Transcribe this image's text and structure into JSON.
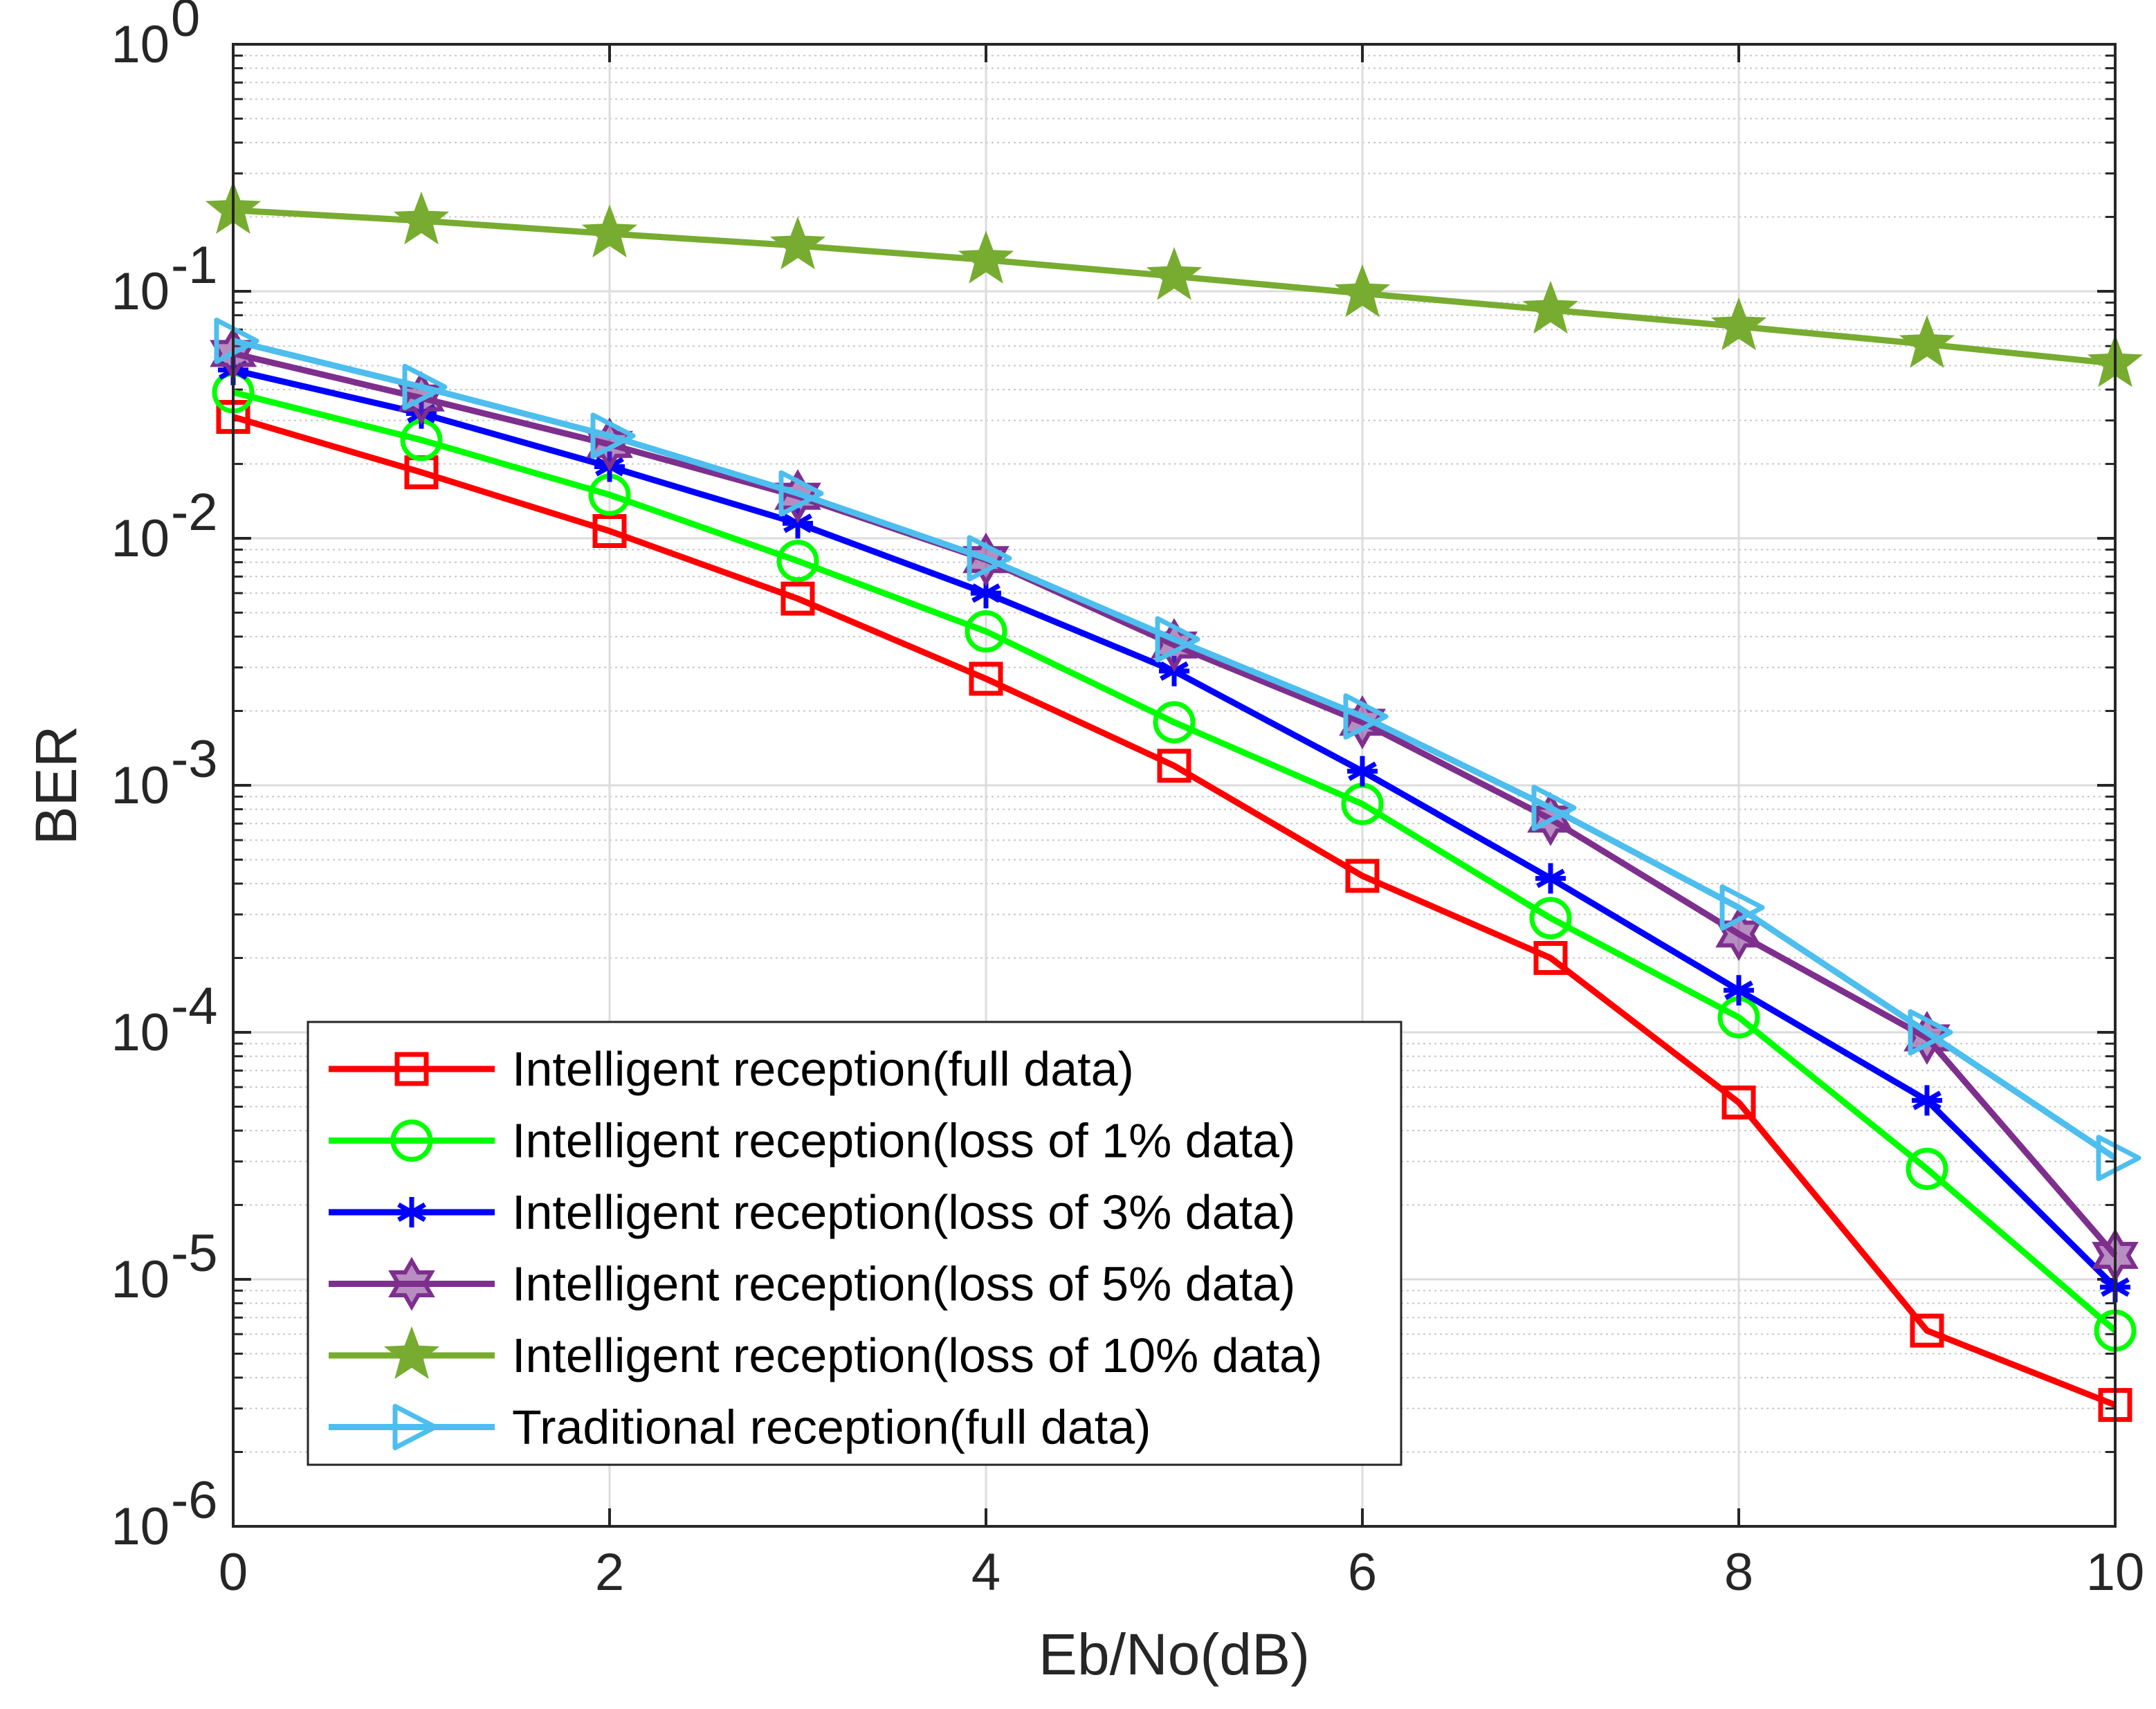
{
  "chart_data": {
    "type": "line",
    "title": "",
    "xlabel": "Eb/No(dB)",
    "ylabel": "BER",
    "xlim": [
      0,
      10
    ],
    "ylim": [
      1e-06,
      1
    ],
    "yscale": "log",
    "grid": true,
    "legend_location": "bottom-left",
    "x": [
      0,
      1,
      2,
      3,
      4,
      5,
      6,
      7,
      8,
      9,
      10
    ],
    "xticks": [
      {
        "value": 0,
        "label": "0"
      },
      {
        "value": 2,
        "label": "2"
      },
      {
        "value": 4,
        "label": "4"
      },
      {
        "value": 6,
        "label": "6"
      },
      {
        "value": 8,
        "label": "8"
      },
      {
        "value": 10,
        "label": "10"
      }
    ],
    "yticks": [
      {
        "exp": 0,
        "base": "10",
        "sup": "0"
      },
      {
        "exp": -1,
        "base": "10",
        "sup": "-1"
      },
      {
        "exp": -2,
        "base": "10",
        "sup": "-2"
      },
      {
        "exp": -3,
        "base": "10",
        "sup": "-3"
      },
      {
        "exp": -4,
        "base": "10",
        "sup": "-4"
      },
      {
        "exp": -5,
        "base": "10",
        "sup": "-5"
      },
      {
        "exp": -6,
        "base": "10",
        "sup": "-6"
      }
    ],
    "series": [
      {
        "name": "Intelligent reception(full data)",
        "color": "#ff0000",
        "marker": "square",
        "values": [
          0.031,
          0.0185,
          0.0107,
          0.0057,
          0.0027,
          0.0012,
          0.00043,
          0.0002,
          5.2e-05,
          6.2e-06,
          3.1e-06
        ]
      },
      {
        "name": "Intelligent reception(loss of 1% data)",
        "color": "#00ff00",
        "marker": "circle",
        "values": [
          0.039,
          0.025,
          0.015,
          0.0081,
          0.0042,
          0.0018,
          0.00084,
          0.00029,
          0.000115,
          2.8e-05,
          6.2e-06
        ]
      },
      {
        "name": "Intelligent reception(loss of 3% data)",
        "color": "#0000ff",
        "marker": "asterisk",
        "values": [
          0.048,
          0.032,
          0.0195,
          0.0115,
          0.006,
          0.0029,
          0.00114,
          0.00042,
          0.000148,
          5.3e-05,
          9.3e-06
        ]
      },
      {
        "name": "Intelligent reception(loss of 5% data)",
        "color": "#7e2f8e",
        "marker": "hexagram",
        "values": [
          0.056,
          0.037,
          0.024,
          0.0148,
          0.0082,
          0.0037,
          0.0018,
          0.00073,
          0.00025,
          9.5e-05,
          1.25e-05
        ]
      },
      {
        "name": "Intelligent reception(loss of 10% data)",
        "color": "#77ac30",
        "marker": "pentagram",
        "values": [
          0.213,
          0.193,
          0.171,
          0.153,
          0.134,
          0.115,
          0.098,
          0.084,
          0.072,
          0.061,
          0.051
        ]
      },
      {
        "name": "Traditional reception(full data)",
        "color": "#4dbeee",
        "marker": "triangle-right",
        "values": [
          0.063,
          0.041,
          0.026,
          0.0152,
          0.0083,
          0.0039,
          0.0019,
          0.00081,
          0.00032,
          0.0001,
          3.1e-05
        ]
      }
    ]
  }
}
